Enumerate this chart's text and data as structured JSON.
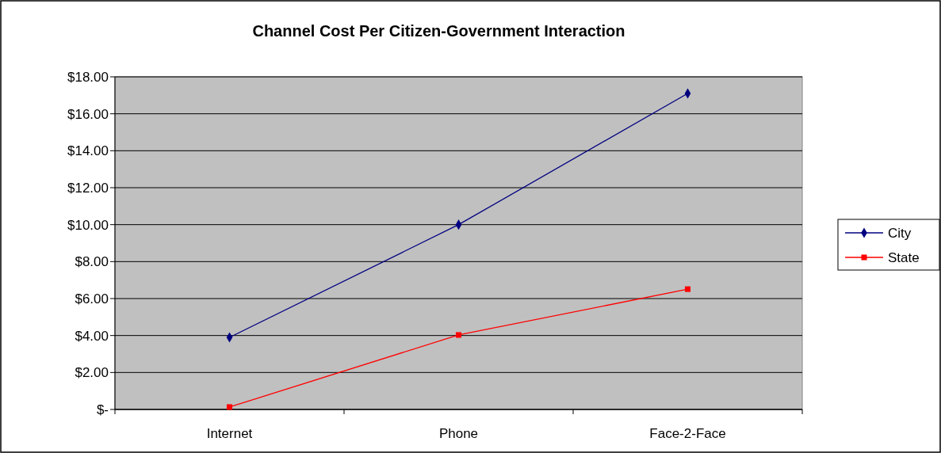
{
  "chart_data": {
    "type": "line",
    "title": "Channel Cost Per Citizen-Government Interaction",
    "categories": [
      "Internet",
      "Phone",
      "Face-2-Face"
    ],
    "series": [
      {
        "name": "City",
        "color": "#000080",
        "values": [
          3.9,
          10.0,
          17.1
        ],
        "marker": "diamond"
      },
      {
        "name": "State",
        "color": "#ff0000",
        "values": [
          0.13,
          4.03,
          6.51
        ],
        "marker": "square"
      }
    ],
    "ylim": [
      0,
      18
    ],
    "yticks": [
      {
        "value": 0,
        "label": "$-"
      },
      {
        "value": 2,
        "label": "$2.00"
      },
      {
        "value": 4,
        "label": "$4.00"
      },
      {
        "value": 6,
        "label": "$6.00"
      },
      {
        "value": 8,
        "label": "$8.00"
      },
      {
        "value": 10,
        "label": "$10.00"
      },
      {
        "value": 12,
        "label": "$12.00"
      },
      {
        "value": 14,
        "label": "$14.00"
      },
      {
        "value": 16,
        "label": "$16.00"
      },
      {
        "value": 18,
        "label": "$18.00"
      }
    ],
    "grid": "y",
    "legend": "right",
    "line_style": "solid"
  }
}
